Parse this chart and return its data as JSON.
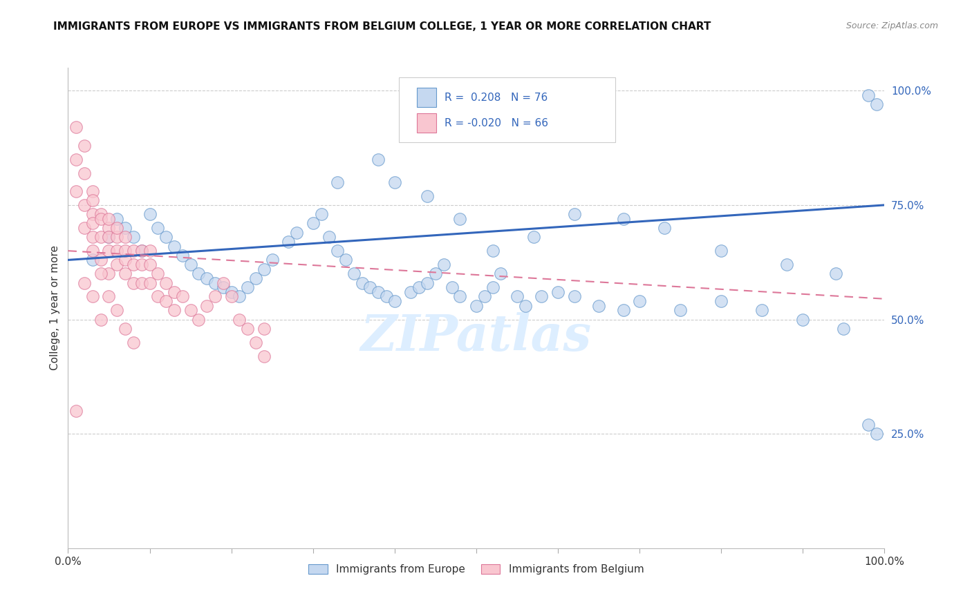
{
  "title": "IMMIGRANTS FROM EUROPE VS IMMIGRANTS FROM BELGIUM COLLEGE, 1 YEAR OR MORE CORRELATION CHART",
  "source": "Source: ZipAtlas.com",
  "ylabel": "College, 1 year or more",
  "y_tick_labels": [
    "25.0%",
    "50.0%",
    "75.0%",
    "100.0%"
  ],
  "y_tick_positions": [
    0.25,
    0.5,
    0.75,
    1.0
  ],
  "x_tick_positions": [
    0.0,
    0.1,
    0.2,
    0.3,
    0.4,
    0.5,
    0.6,
    0.7,
    0.8,
    0.9,
    1.0
  ],
  "legend_blue_r": "0.208",
  "legend_blue_n": "76",
  "legend_pink_r": "-0.020",
  "legend_pink_n": "66",
  "blue_fill_color": "#c5d8f0",
  "pink_fill_color": "#f9c6d0",
  "blue_edge_color": "#6699cc",
  "pink_edge_color": "#dd7799",
  "blue_line_color": "#3366bb",
  "pink_line_color": "#dd5577",
  "watermark_color": "#ddeeff",
  "watermark_text": "ZIPatlas",
  "blue_scatter_x": [
    0.03,
    0.05,
    0.06,
    0.07,
    0.08,
    0.09,
    0.1,
    0.11,
    0.12,
    0.13,
    0.14,
    0.15,
    0.16,
    0.17,
    0.18,
    0.19,
    0.2,
    0.21,
    0.22,
    0.23,
    0.24,
    0.25,
    0.27,
    0.28,
    0.3,
    0.31,
    0.32,
    0.33,
    0.34,
    0.35,
    0.36,
    0.37,
    0.38,
    0.39,
    0.4,
    0.42,
    0.43,
    0.44,
    0.45,
    0.46,
    0.47,
    0.48,
    0.5,
    0.51,
    0.52,
    0.53,
    0.55,
    0.56,
    0.58,
    0.6,
    0.62,
    0.65,
    0.68,
    0.7,
    0.75,
    0.8,
    0.85,
    0.9,
    0.95,
    0.98,
    0.99,
    0.33,
    0.38,
    0.4,
    0.44,
    0.48,
    0.52,
    0.57,
    0.62,
    0.68,
    0.73,
    0.8,
    0.88,
    0.94,
    0.98,
    0.99
  ],
  "blue_scatter_y": [
    0.63,
    0.68,
    0.72,
    0.7,
    0.68,
    0.65,
    0.73,
    0.7,
    0.68,
    0.66,
    0.64,
    0.62,
    0.6,
    0.59,
    0.58,
    0.57,
    0.56,
    0.55,
    0.57,
    0.59,
    0.61,
    0.63,
    0.67,
    0.69,
    0.71,
    0.73,
    0.68,
    0.65,
    0.63,
    0.6,
    0.58,
    0.57,
    0.56,
    0.55,
    0.54,
    0.56,
    0.57,
    0.58,
    0.6,
    0.62,
    0.57,
    0.55,
    0.53,
    0.55,
    0.57,
    0.6,
    0.55,
    0.53,
    0.55,
    0.56,
    0.55,
    0.53,
    0.52,
    0.54,
    0.52,
    0.54,
    0.52,
    0.5,
    0.48,
    0.27,
    0.25,
    0.8,
    0.85,
    0.8,
    0.77,
    0.72,
    0.65,
    0.68,
    0.73,
    0.72,
    0.7,
    0.65,
    0.62,
    0.6,
    0.99,
    0.97
  ],
  "pink_scatter_x": [
    0.01,
    0.01,
    0.01,
    0.02,
    0.02,
    0.02,
    0.02,
    0.03,
    0.03,
    0.03,
    0.03,
    0.03,
    0.03,
    0.04,
    0.04,
    0.04,
    0.04,
    0.05,
    0.05,
    0.05,
    0.05,
    0.05,
    0.06,
    0.06,
    0.06,
    0.06,
    0.07,
    0.07,
    0.07,
    0.07,
    0.08,
    0.08,
    0.08,
    0.09,
    0.09,
    0.09,
    0.1,
    0.1,
    0.1,
    0.11,
    0.11,
    0.12,
    0.12,
    0.13,
    0.13,
    0.14,
    0.15,
    0.16,
    0.17,
    0.18,
    0.19,
    0.2,
    0.21,
    0.22,
    0.23,
    0.24,
    0.02,
    0.03,
    0.04,
    0.04,
    0.05,
    0.06,
    0.07,
    0.08,
    0.24,
    0.01
  ],
  "pink_scatter_y": [
    0.92,
    0.85,
    0.78,
    0.88,
    0.82,
    0.75,
    0.7,
    0.78,
    0.73,
    0.68,
    0.76,
    0.71,
    0.65,
    0.73,
    0.68,
    0.63,
    0.72,
    0.7,
    0.65,
    0.6,
    0.68,
    0.72,
    0.68,
    0.65,
    0.62,
    0.7,
    0.68,
    0.63,
    0.6,
    0.65,
    0.62,
    0.58,
    0.65,
    0.62,
    0.58,
    0.65,
    0.62,
    0.58,
    0.65,
    0.6,
    0.55,
    0.58,
    0.54,
    0.56,
    0.52,
    0.55,
    0.52,
    0.5,
    0.53,
    0.55,
    0.58,
    0.55,
    0.5,
    0.48,
    0.45,
    0.42,
    0.58,
    0.55,
    0.5,
    0.6,
    0.55,
    0.52,
    0.48,
    0.45,
    0.48,
    0.3
  ],
  "blue_line_x0": 0.0,
  "blue_line_x1": 1.0,
  "blue_line_y0": 0.63,
  "blue_line_y1": 0.75,
  "pink_line_x0": 0.0,
  "pink_line_x1": 1.0,
  "pink_line_y0": 0.65,
  "pink_line_y1": 0.545,
  "xlim": [
    0.0,
    1.0
  ],
  "ylim": [
    0.0,
    1.05
  ],
  "scatter_size": 160,
  "scatter_alpha": 0.75,
  "scatter_lw": 0.8
}
